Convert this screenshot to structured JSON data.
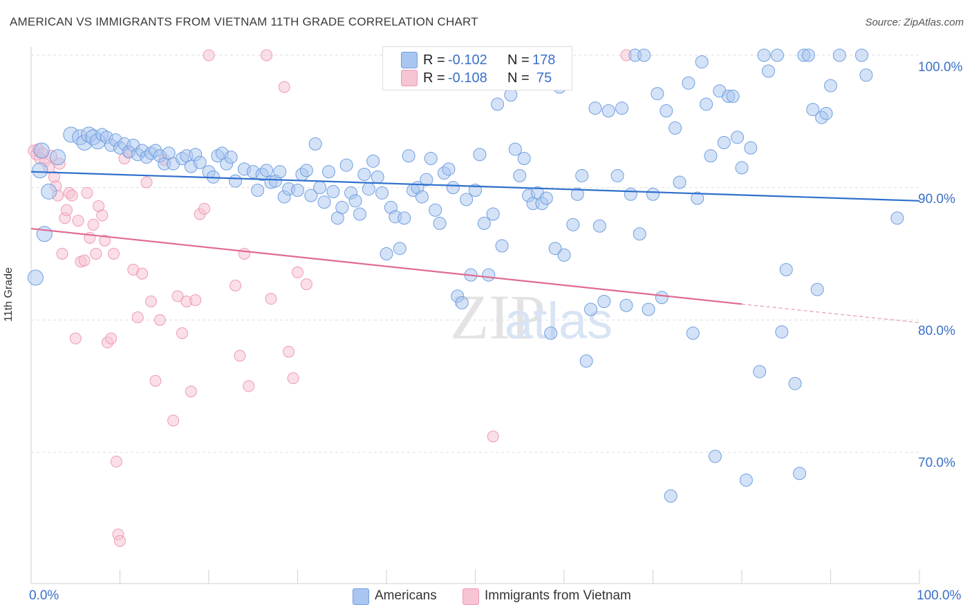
{
  "title": "AMERICAN VS IMMIGRANTS FROM VIETNAM 11TH GRADE CORRELATION CHART",
  "source": "Source: ZipAtlas.com",
  "legend_top": {
    "americans": {
      "r_label": "R =",
      "r_value": "-0.102",
      "n_label": "N =",
      "n_value": "178"
    },
    "vietnam": {
      "r_label": "R =",
      "r_value": "-0.108",
      "n_label": "N =",
      "n_value": "75"
    }
  },
  "legend_bottom": {
    "americans": "Americans",
    "vietnam": "Immigrants from Vietnam"
  },
  "x_axis": {
    "min_label": "0.0%",
    "max_label": "100.0%"
  },
  "y_axis_label": "11th Grade",
  "y_ticks": [
    "100.0%",
    "90.0%",
    "80.0%",
    "70.0%"
  ],
  "colors": {
    "americans": "#6f9ee0",
    "americans_fill": "#a9c6f0",
    "americans_line": "#2d6fcc",
    "vietnam": "#ee9ab3",
    "vietnam_fill": "#f6c4d3",
    "vietnam_line": "#e06a92",
    "tick_text": "#3a6fc7"
  },
  "chart_data": {
    "type": "scatter",
    "xlim": [
      0,
      100
    ],
    "ylim": [
      61.5,
      101.5
    ],
    "grid": true,
    "series": [
      {
        "name": "Americans",
        "trend": {
          "x0": 0,
          "y0": 91.2,
          "x1": 100,
          "y1": 89.0
        },
        "points": [
          [
            0.5,
            83.2
          ],
          [
            1,
            91.3
          ],
          [
            1.2,
            92.8
          ],
          [
            2,
            89.7
          ],
          [
            1.5,
            86.5
          ],
          [
            3,
            92.3
          ],
          [
            4.5,
            94
          ],
          [
            5.5,
            93.8
          ],
          [
            6,
            93.4
          ],
          [
            6.5,
            94
          ],
          [
            7,
            93.8
          ],
          [
            7.5,
            93.5
          ],
          [
            8,
            94
          ],
          [
            8.5,
            93.8
          ],
          [
            9,
            93.2
          ],
          [
            9.5,
            93.6
          ],
          [
            10,
            93
          ],
          [
            10.5,
            93.3
          ],
          [
            11,
            92.7
          ],
          [
            11.5,
            93.2
          ],
          [
            12,
            92.5
          ],
          [
            12.5,
            92.8
          ],
          [
            13,
            92.3
          ],
          [
            13.5,
            92.6
          ],
          [
            14,
            92.8
          ],
          [
            14.5,
            92.4
          ],
          [
            15,
            91.8
          ],
          [
            15.5,
            92.6
          ],
          [
            16,
            91.8
          ],
          [
            17,
            92.2
          ],
          [
            17.5,
            92.4
          ],
          [
            18,
            91.6
          ],
          [
            18.5,
            92.5
          ],
          [
            19,
            91.9
          ],
          [
            20,
            91.2
          ],
          [
            20.5,
            90.8
          ],
          [
            21,
            92.4
          ],
          [
            21.5,
            92.6
          ],
          [
            22,
            91.8
          ],
          [
            22.5,
            92.3
          ],
          [
            23,
            90.5
          ],
          [
            24,
            91.4
          ],
          [
            25,
            91.2
          ],
          [
            25.5,
            89.8
          ],
          [
            26,
            91
          ],
          [
            26.5,
            91.3
          ],
          [
            27,
            90.4
          ],
          [
            27.5,
            90.5
          ],
          [
            28,
            91.2
          ],
          [
            28.5,
            89.3
          ],
          [
            29,
            89.9
          ],
          [
            30,
            89.8
          ],
          [
            30.5,
            91
          ],
          [
            31,
            91.3
          ],
          [
            31.5,
            89.4
          ],
          [
            32,
            93.3
          ],
          [
            32.5,
            90
          ],
          [
            33,
            88.9
          ],
          [
            33.5,
            91.2
          ],
          [
            34,
            89.7
          ],
          [
            34.5,
            87.7
          ],
          [
            35,
            88.5
          ],
          [
            35.5,
            91.7
          ],
          [
            36,
            89.6
          ],
          [
            36.5,
            89
          ],
          [
            37,
            88
          ],
          [
            37.5,
            91
          ],
          [
            38,
            89.9
          ],
          [
            38.5,
            92
          ],
          [
            39,
            90.8
          ],
          [
            39.5,
            89.6
          ],
          [
            40,
            85
          ],
          [
            40.5,
            88.5
          ],
          [
            41,
            87.8
          ],
          [
            41.5,
            85.4
          ],
          [
            42,
            87.7
          ],
          [
            42.5,
            92.4
          ],
          [
            43,
            89.8
          ],
          [
            43.5,
            90
          ],
          [
            44,
            89.3
          ],
          [
            44.5,
            90.6
          ],
          [
            45,
            92.2
          ],
          [
            45.5,
            88.3
          ],
          [
            46,
            87.3
          ],
          [
            46.5,
            91.1
          ],
          [
            47,
            91.4
          ],
          [
            47.5,
            90
          ],
          [
            48,
            81.8
          ],
          [
            48.5,
            81.3
          ],
          [
            49,
            89.1
          ],
          [
            49.5,
            83.4
          ],
          [
            50,
            89.8
          ],
          [
            50.5,
            92.5
          ],
          [
            51,
            87.3
          ],
          [
            51.5,
            83.4
          ],
          [
            52,
            88
          ],
          [
            52.5,
            96.3
          ],
          [
            53,
            85.6
          ],
          [
            54,
            97
          ],
          [
            54.5,
            92.9
          ],
          [
            55,
            90.9
          ],
          [
            55.5,
            92.2
          ],
          [
            56,
            89.4
          ],
          [
            56.5,
            88.8
          ],
          [
            57,
            89.6
          ],
          [
            57.5,
            88.8
          ],
          [
            58,
            89.2
          ],
          [
            58.5,
            79
          ],
          [
            59,
            85.4
          ],
          [
            59.5,
            97.6
          ],
          [
            60,
            84.9
          ],
          [
            61,
            87.2
          ],
          [
            61.5,
            89.5
          ],
          [
            62,
            90.9
          ],
          [
            62.5,
            76.9
          ],
          [
            63,
            80.8
          ],
          [
            63.5,
            96
          ],
          [
            64,
            87.1
          ],
          [
            64.5,
            81.4
          ],
          [
            65,
            95.8
          ],
          [
            66,
            90.9
          ],
          [
            66.5,
            96
          ],
          [
            67,
            81.1
          ],
          [
            67.5,
            89.5
          ],
          [
            68,
            100
          ],
          [
            68.5,
            86.5
          ],
          [
            69,
            100
          ],
          [
            69.5,
            80.8
          ],
          [
            70,
            89.5
          ],
          [
            70.5,
            97.1
          ],
          [
            71,
            81.7
          ],
          [
            71.5,
            95.8
          ],
          [
            72,
            66.7
          ],
          [
            72.5,
            94.5
          ],
          [
            73,
            90.4
          ],
          [
            74,
            97.9
          ],
          [
            74.5,
            79
          ],
          [
            75,
            89.2
          ],
          [
            75.5,
            99.5
          ],
          [
            76,
            96.3
          ],
          [
            76.5,
            92.4
          ],
          [
            77,
            69.7
          ],
          [
            77.5,
            97.3
          ],
          [
            78,
            93.4
          ],
          [
            78.5,
            96.9
          ],
          [
            79,
            96.9
          ],
          [
            79.5,
            93.8
          ],
          [
            80,
            91.5
          ],
          [
            80.5,
            67.9
          ],
          [
            81,
            93
          ],
          [
            82,
            76.1
          ],
          [
            82.5,
            100
          ],
          [
            83,
            98.8
          ],
          [
            84,
            100
          ],
          [
            84.5,
            79.1
          ],
          [
            85,
            83.8
          ],
          [
            86,
            75.2
          ],
          [
            86.5,
            68.4
          ],
          [
            87,
            100
          ],
          [
            87.5,
            100
          ],
          [
            88,
            95.9
          ],
          [
            88.5,
            82.3
          ],
          [
            89,
            95.3
          ],
          [
            89.5,
            95.6
          ],
          [
            90,
            97.7
          ],
          [
            91,
            100
          ],
          [
            93.5,
            100
          ],
          [
            94,
            98.5
          ],
          [
            97.5,
            87.7
          ]
        ]
      },
      {
        "name": "Immigrants from Vietnam",
        "trend": {
          "x0": 0,
          "y0": 86.9,
          "x1": 80,
          "y1": 81.2
        },
        "trend_dashed": {
          "x0": 80,
          "y0": 81.2,
          "x1": 100,
          "y1": 79.8
        },
        "points": [
          [
            0.3,
            92.8
          ],
          [
            0.6,
            92.5
          ],
          [
            0.8,
            92.9
          ],
          [
            1,
            92.2
          ],
          [
            1.3,
            92.6
          ],
          [
            1.6,
            92
          ],
          [
            2,
            91.5
          ],
          [
            2.3,
            92.4
          ],
          [
            2.6,
            90.8
          ],
          [
            2.8,
            90.1
          ],
          [
            3,
            89.4
          ],
          [
            3.2,
            91.8
          ],
          [
            3.5,
            85
          ],
          [
            3.8,
            87.7
          ],
          [
            4,
            88.3
          ],
          [
            4.3,
            89.6
          ],
          [
            4.6,
            89.4
          ],
          [
            5,
            78.6
          ],
          [
            5.3,
            87.5
          ],
          [
            5.6,
            84.4
          ],
          [
            6,
            84.5
          ],
          [
            6.3,
            89.6
          ],
          [
            6.6,
            86.2
          ],
          [
            7,
            87.2
          ],
          [
            7.3,
            85
          ],
          [
            7.6,
            88.6
          ],
          [
            8,
            87.9
          ],
          [
            8.3,
            86
          ],
          [
            8.6,
            78.3
          ],
          [
            9,
            78.6
          ],
          [
            9.3,
            85
          ],
          [
            9.6,
            69.3
          ],
          [
            9.8,
            63.8
          ],
          [
            10,
            63.3
          ],
          [
            10.5,
            92.2
          ],
          [
            11,
            92.7
          ],
          [
            11.5,
            83.8
          ],
          [
            12,
            80.2
          ],
          [
            12.5,
            83.5
          ],
          [
            13,
            90.4
          ],
          [
            13.5,
            81.4
          ],
          [
            14,
            75.4
          ],
          [
            14.5,
            80
          ],
          [
            15,
            92.1
          ],
          [
            16,
            72.4
          ],
          [
            16.5,
            81.8
          ],
          [
            17,
            79
          ],
          [
            17.5,
            81.4
          ],
          [
            18,
            74.6
          ],
          [
            18.5,
            81.5
          ],
          [
            19,
            88
          ],
          [
            19.5,
            88.4
          ],
          [
            20,
            100
          ],
          [
            23,
            82.6
          ],
          [
            23.5,
            77.3
          ],
          [
            24,
            85
          ],
          [
            24.5,
            75
          ],
          [
            26.5,
            100
          ],
          [
            27,
            81.6
          ],
          [
            28.5,
            97.6
          ],
          [
            29,
            77.6
          ],
          [
            29.5,
            75.6
          ],
          [
            30,
            83.6
          ],
          [
            31,
            82.7
          ],
          [
            52,
            71.2
          ],
          [
            67,
            100
          ]
        ]
      }
    ]
  }
}
